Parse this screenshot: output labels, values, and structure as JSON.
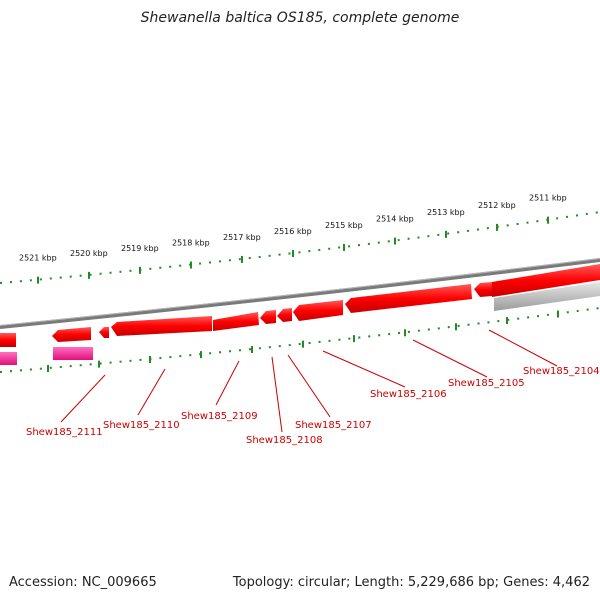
{
  "title": "Shewanella baltica OS185, complete genome",
  "accession": "Accession: NC_009665",
  "topology": "Topology: circular; Length: 5,229,686 bp; Genes: 4,462",
  "scale_labels": [
    "2521 kbp",
    "2520 kbp",
    "2519 kbp",
    "2518 kbp",
    "2517 kbp",
    "2516 kbp",
    "2515 kbp",
    "2514 kbp",
    "2513 kbp",
    "2512 kbp",
    "2511 kbp"
  ],
  "gene_labels": [
    "Shew185_2111",
    "Shew185_2110",
    "Shew185_2109",
    "Shew185_2108",
    "Shew185_2107",
    "Shew185_2106",
    "Shew185_2105",
    "Shew185_2104"
  ],
  "colors": {
    "cds_red": "#ff0000",
    "cds_pink": "#ff1493",
    "backbone": "#808080",
    "tick_green": "#228b22",
    "label_red": "#cc0000"
  }
}
